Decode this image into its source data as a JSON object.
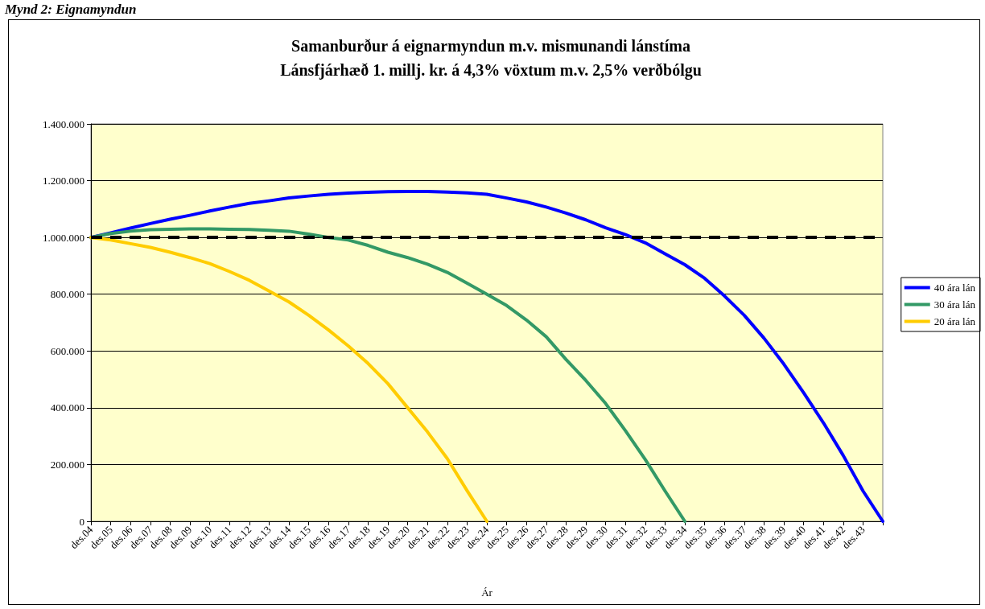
{
  "chart_data": {
    "type": "line",
    "title": "Samanburður á eignarmyndun m.v. mismunandi lánstíma",
    "subtitle": "Lánsfjárhæð 1. millj. kr. á 4,3% vöxtum m.v. 2,5% verðbólgu",
    "xlabel": "Ár",
    "annotations": [
      "Mynd 2: Eignamyndun"
    ],
    "categories": [
      "des.04",
      "des.05",
      "des.06",
      "des.07",
      "des.08",
      "des.09",
      "des.10",
      "des.11",
      "des.12",
      "des.13",
      "des.14",
      "des.15",
      "des.16",
      "des.17",
      "des.18",
      "des.19",
      "des.20",
      "des.21",
      "des.22",
      "des.23",
      "des.24",
      "des.25",
      "des.26",
      "des.27",
      "des.28",
      "des.29",
      "des.30",
      "des.31",
      "des.32",
      "des.33",
      "des.34",
      "des.35",
      "des.36",
      "des.37",
      "des.38",
      "des.39",
      "des.40",
      "des.41",
      "des.42",
      "des.43",
      null
    ],
    "series": [
      {
        "name": "40 ára lán",
        "color": "#0000ff",
        "values": [
          1000000,
          1016000,
          1033000,
          1049000,
          1064000,
          1078000,
          1093000,
          1107000,
          1120000,
          1129000,
          1139000,
          1146000,
          1152000,
          1156000,
          1159000,
          1161000,
          1162000,
          1162000,
          1160000,
          1157000,
          1152000,
          1139000,
          1125000,
          1107000,
          1086000,
          1062000,
          1034000,
          1010000,
          981000,
          942000,
          904000,
          856000,
          794000,
          726000,
          645000,
          554000,
          453000,
          347000,
          232000,
          107000,
          0
        ]
      },
      {
        "name": "30 ára lán",
        "color": "#339966",
        "values": [
          1000000,
          1014000,
          1022000,
          1027000,
          1029000,
          1030000,
          1030000,
          1029000,
          1028000,
          1025000,
          1022000,
          1012000,
          1000000,
          991000,
          972000,
          948000,
          929000,
          906000,
          877000,
          839000,
          800000,
          760000,
          709000,
          650000,
          570000,
          496000,
          415000,
          319000,
          218000,
          107000,
          0,
          null,
          null,
          null,
          null,
          null,
          null,
          null,
          null,
          null,
          null
        ]
      },
      {
        "name": "20 ára lán",
        "color": "#ffcc00",
        "values": [
          1000000,
          991000,
          978000,
          965000,
          948000,
          929000,
          908000,
          880000,
          849000,
          811000,
          773000,
          726000,
          674000,
          618000,
          556000,
          485000,
          400000,
          315000,
          221000,
          108000,
          0,
          null,
          null,
          null,
          null,
          null,
          null,
          null,
          null,
          null,
          null,
          null,
          null,
          null,
          null,
          null,
          null,
          null,
          null,
          null,
          null
        ]
      }
    ],
    "ylim": [
      0,
      1400000
    ],
    "yticks": [
      0,
      {
        "value": 200000,
        "label": "200.000"
      },
      {
        "value": 400000,
        "label": "400.000"
      },
      {
        "value": 600000,
        "label": "600.000"
      },
      {
        "value": 800000,
        "label": "800.000"
      },
      {
        "value": 1000000,
        "label": "1.000.000"
      },
      {
        "value": 1200000,
        "label": "1.200.000"
      },
      {
        "value": 1400000,
        "label": "1.400.000"
      }
    ],
    "ref_lines": [
      {
        "axis": "y",
        "value": 1000000,
        "color": "#000000",
        "line_style": "dashed"
      }
    ],
    "grid": "y",
    "legend": "right",
    "marker": "none",
    "line_style": "solid"
  }
}
